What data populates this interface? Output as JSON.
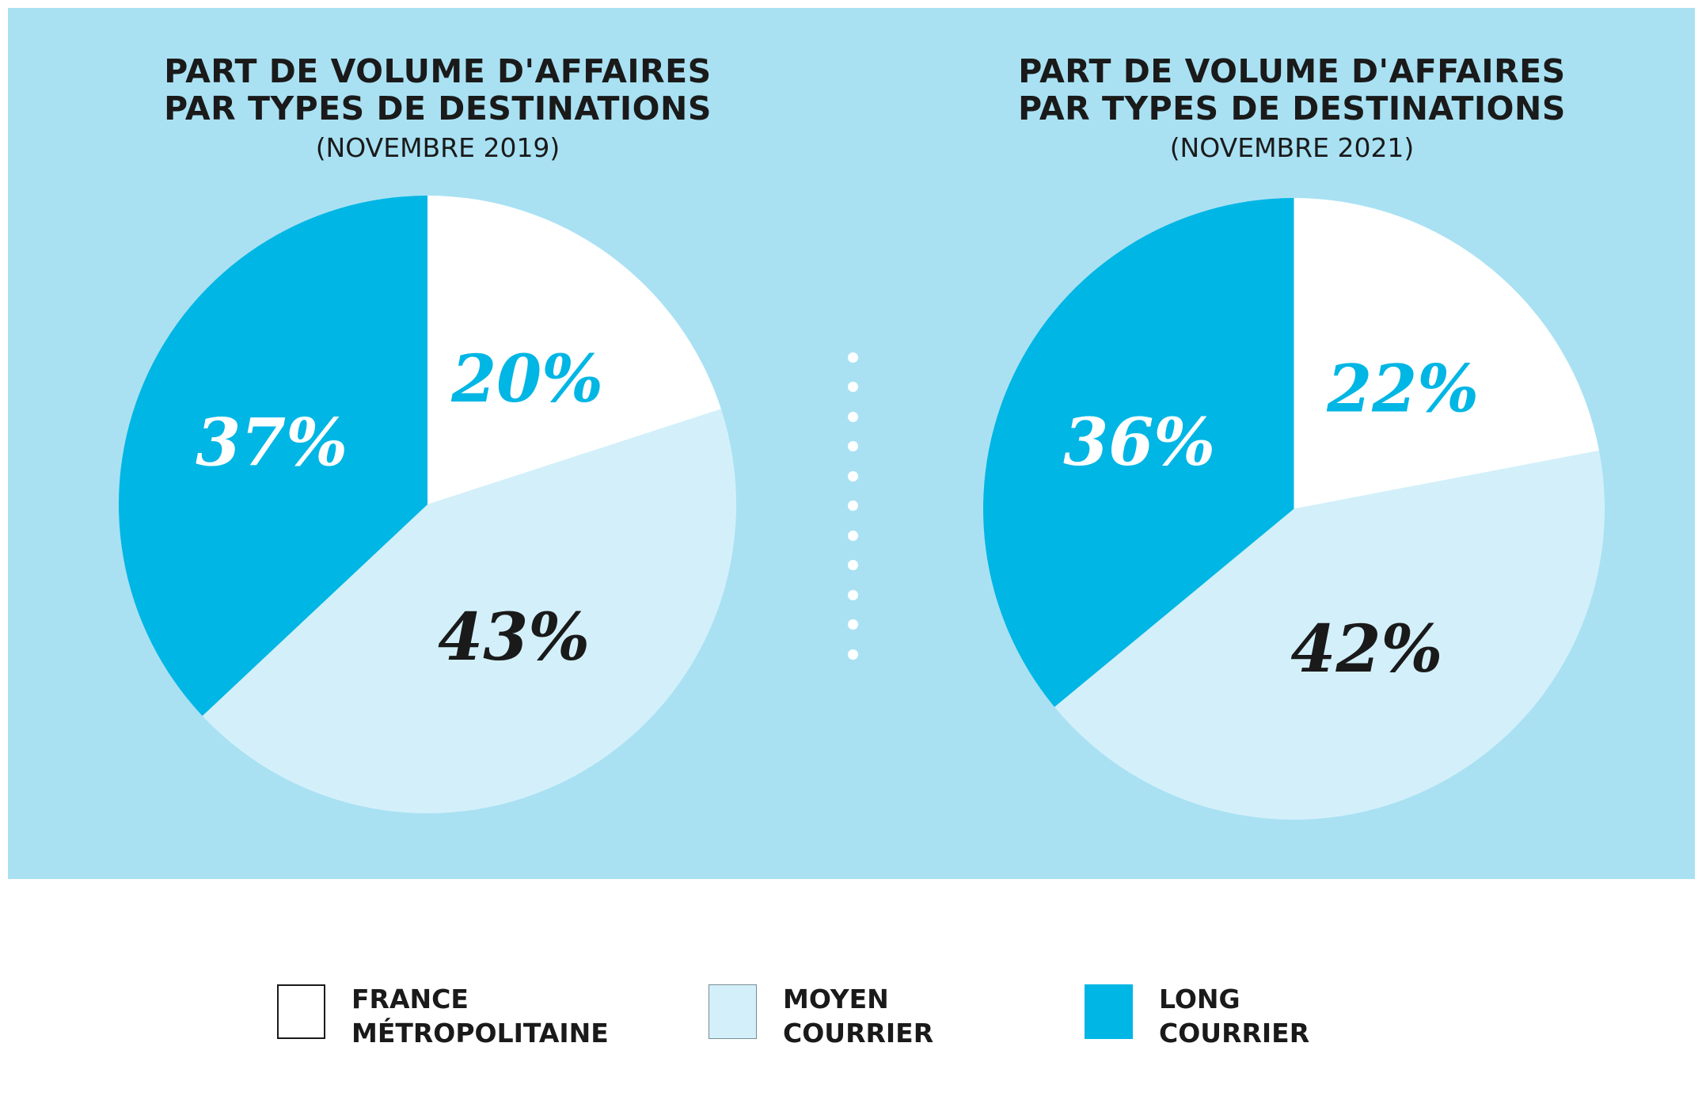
{
  "colors": {
    "panel": "#a9e1f3",
    "france_metropolitaine": "#ffffff",
    "moyen_courrier": "#d3f0fa",
    "long_courrier": "#00b6e4",
    "label_light": "#ffffff",
    "label_accent": "#00b6e4",
    "label_dark": "#1a1a1a",
    "divider_dots": "#ffffff"
  },
  "chart_data": [
    {
      "type": "pie",
      "title_line1": "PART DE VOLUME D'AFFAIRES",
      "title_line2": "PAR TYPES DE DESTINATIONS",
      "subtitle": "(NOVEMBRE 2019)",
      "slices": [
        {
          "name": "FRANCE MÉTROPOLITAINE",
          "value": 20,
          "label": "20%",
          "color": "#ffffff",
          "label_color": "#00b6e4"
        },
        {
          "name": "MOYEN COURRIER",
          "value": 43,
          "label": "43%",
          "color": "#d3f0fa",
          "label_color": "#1a1a1a"
        },
        {
          "name": "LONG COURRIER",
          "value": 37,
          "label": "37%",
          "color": "#00b6e4",
          "label_color": "#ffffff"
        }
      ]
    },
    {
      "type": "pie",
      "title_line1": "PART DE VOLUME D'AFFAIRES",
      "title_line2": "PAR TYPES DE DESTINATIONS",
      "subtitle": "(NOVEMBRE 2021)",
      "slices": [
        {
          "name": "FRANCE MÉTROPOLITAINE",
          "value": 22,
          "label": "22%",
          "color": "#ffffff",
          "label_color": "#00b6e4"
        },
        {
          "name": "MOYEN COURRIER",
          "value": 42,
          "label": "42%",
          "color": "#d3f0fa",
          "label_color": "#1a1a1a"
        },
        {
          "name": "LONG COURRIER",
          "value": 36,
          "label": "36%",
          "color": "#00b6e4",
          "label_color": "#ffffff"
        }
      ]
    }
  ],
  "legend": [
    {
      "line1": "FRANCE",
      "line2": "MÉTROPOLITAINE",
      "color": "#ffffff"
    },
    {
      "line1": "MOYEN",
      "line2": "COURRIER",
      "color": "#d3f0fa"
    },
    {
      "line1": "LONG",
      "line2": "COURRIER",
      "color": "#00b6e4"
    }
  ]
}
